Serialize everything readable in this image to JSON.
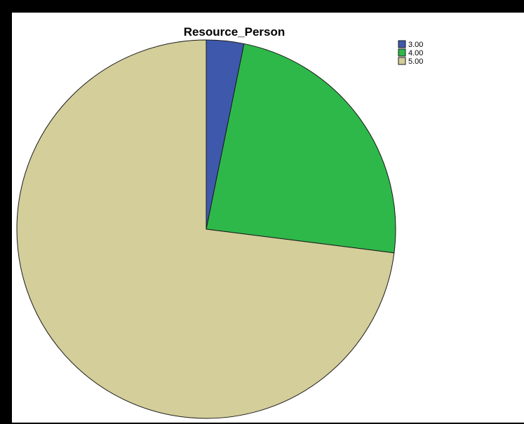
{
  "chart_data": {
    "type": "pie",
    "title": "Resource_Person",
    "legend_position": "top-right",
    "slices": [
      {
        "label": "3.00",
        "value": 3.2,
        "color": "#3e58ac"
      },
      {
        "label": "4.00",
        "value": 23.8,
        "color": "#2fb84a"
      },
      {
        "label": "5.00",
        "value": 73.0,
        "color": "#d3ce9a"
      }
    ]
  }
}
